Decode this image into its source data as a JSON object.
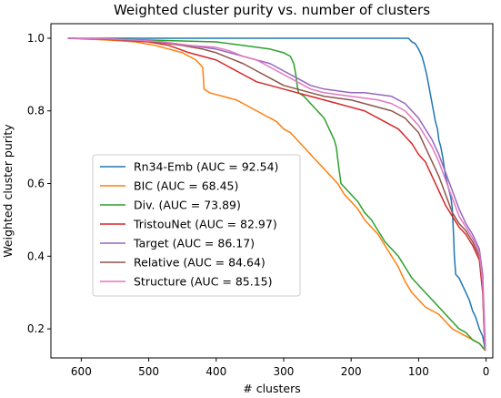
{
  "chart_data": {
    "type": "line",
    "title": "Weighted cluster purity vs. number of clusters",
    "xlabel": "# clusters",
    "ylabel": "Weighted cluster purity",
    "xlim": [
      645,
      -10
    ],
    "ylim": [
      0.12,
      1.04
    ],
    "x_reversed": true,
    "xticks": [
      600,
      500,
      400,
      300,
      200,
      100,
      0
    ],
    "yticks": [
      0.2,
      0.4,
      0.6,
      0.8,
      1.0
    ],
    "xtick_labels": [
      "600",
      "500",
      "400",
      "300",
      "200",
      "100",
      "0"
    ],
    "ytick_labels": [
      "0.2",
      "0.4",
      "0.6",
      "0.8",
      "1.0"
    ],
    "grid": false,
    "legend_position": "center-left",
    "series": [
      {
        "name": "Rn34-Emb (AUC = 92.54)",
        "color": "#1f77b4",
        "points": [
          [
            620,
            1.0
          ],
          [
            500,
            1.0
          ],
          [
            400,
            1.0
          ],
          [
            300,
            1.0
          ],
          [
            200,
            1.0
          ],
          [
            115,
            1.0
          ],
          [
            110,
            0.99
          ],
          [
            105,
            0.985
          ],
          [
            100,
            0.97
          ],
          [
            95,
            0.95
          ],
          [
            92,
            0.93
          ],
          [
            88,
            0.9
          ],
          [
            85,
            0.87
          ],
          [
            82,
            0.84
          ],
          [
            78,
            0.8
          ],
          [
            75,
            0.77
          ],
          [
            72,
            0.75
          ],
          [
            70,
            0.72
          ],
          [
            67,
            0.7
          ],
          [
            64,
            0.67
          ],
          [
            60,
            0.62
          ],
          [
            56,
            0.59
          ],
          [
            52,
            0.56
          ],
          [
            50,
            0.53
          ],
          [
            48,
            0.45
          ],
          [
            47,
            0.4
          ],
          [
            45,
            0.35
          ],
          [
            40,
            0.34
          ],
          [
            35,
            0.32
          ],
          [
            30,
            0.3
          ],
          [
            25,
            0.28
          ],
          [
            20,
            0.25
          ],
          [
            15,
            0.23
          ],
          [
            10,
            0.2
          ],
          [
            5,
            0.18
          ],
          [
            3,
            0.16
          ],
          [
            1,
            0.14
          ]
        ]
      },
      {
        "name": "BIC (AUC = 68.45)",
        "color": "#ff7f0e",
        "points": [
          [
            620,
            1.0
          ],
          [
            560,
            0.995
          ],
          [
            520,
            0.99
          ],
          [
            490,
            0.98
          ],
          [
            470,
            0.97
          ],
          [
            450,
            0.96
          ],
          [
            440,
            0.95
          ],
          [
            430,
            0.94
          ],
          [
            420,
            0.92
          ],
          [
            418,
            0.86
          ],
          [
            410,
            0.85
          ],
          [
            400,
            0.845
          ],
          [
            390,
            0.84
          ],
          [
            380,
            0.835
          ],
          [
            370,
            0.83
          ],
          [
            360,
            0.82
          ],
          [
            350,
            0.81
          ],
          [
            340,
            0.8
          ],
          [
            330,
            0.79
          ],
          [
            320,
            0.78
          ],
          [
            310,
            0.77
          ],
          [
            300,
            0.75
          ],
          [
            290,
            0.74
          ],
          [
            280,
            0.72
          ],
          [
            270,
            0.7
          ],
          [
            260,
            0.68
          ],
          [
            250,
            0.66
          ],
          [
            240,
            0.64
          ],
          [
            230,
            0.62
          ],
          [
            220,
            0.6
          ],
          [
            210,
            0.57
          ],
          [
            200,
            0.55
          ],
          [
            190,
            0.53
          ],
          [
            180,
            0.5
          ],
          [
            170,
            0.48
          ],
          [
            160,
            0.46
          ],
          [
            150,
            0.43
          ],
          [
            140,
            0.4
          ],
          [
            130,
            0.37
          ],
          [
            120,
            0.33
          ],
          [
            110,
            0.3
          ],
          [
            100,
            0.28
          ],
          [
            90,
            0.26
          ],
          [
            80,
            0.25
          ],
          [
            70,
            0.24
          ],
          [
            60,
            0.22
          ],
          [
            50,
            0.2
          ],
          [
            40,
            0.19
          ],
          [
            30,
            0.18
          ],
          [
            20,
            0.17
          ],
          [
            10,
            0.16
          ],
          [
            5,
            0.15
          ],
          [
            1,
            0.14
          ]
        ]
      },
      {
        "name": "Div. (AUC = 73.89)",
        "color": "#2ca02c",
        "points": [
          [
            620,
            1.0
          ],
          [
            500,
            0.995
          ],
          [
            400,
            0.99
          ],
          [
            380,
            0.985
          ],
          [
            360,
            0.98
          ],
          [
            340,
            0.975
          ],
          [
            320,
            0.97
          ],
          [
            300,
            0.96
          ],
          [
            290,
            0.95
          ],
          [
            285,
            0.93
          ],
          [
            282,
            0.9
          ],
          [
            280,
            0.87
          ],
          [
            278,
            0.85
          ],
          [
            270,
            0.84
          ],
          [
            260,
            0.82
          ],
          [
            250,
            0.8
          ],
          [
            240,
            0.78
          ],
          [
            235,
            0.76
          ],
          [
            230,
            0.74
          ],
          [
            225,
            0.72
          ],
          [
            222,
            0.7
          ],
          [
            220,
            0.67
          ],
          [
            218,
            0.64
          ],
          [
            215,
            0.6
          ],
          [
            210,
            0.59
          ],
          [
            200,
            0.57
          ],
          [
            190,
            0.55
          ],
          [
            180,
            0.52
          ],
          [
            170,
            0.5
          ],
          [
            160,
            0.47
          ],
          [
            150,
            0.44
          ],
          [
            140,
            0.42
          ],
          [
            130,
            0.4
          ],
          [
            120,
            0.37
          ],
          [
            110,
            0.34
          ],
          [
            100,
            0.32
          ],
          [
            90,
            0.3
          ],
          [
            80,
            0.28
          ],
          [
            70,
            0.26
          ],
          [
            60,
            0.24
          ],
          [
            50,
            0.22
          ],
          [
            40,
            0.2
          ],
          [
            30,
            0.19
          ],
          [
            20,
            0.17
          ],
          [
            10,
            0.16
          ],
          [
            1,
            0.14
          ]
        ]
      },
      {
        "name": "TristouNet (AUC = 82.97)",
        "color": "#d62728",
        "points": [
          [
            620,
            1.0
          ],
          [
            580,
            0.998
          ],
          [
            540,
            0.995
          ],
          [
            500,
            0.99
          ],
          [
            470,
            0.98
          ],
          [
            440,
            0.96
          ],
          [
            420,
            0.95
          ],
          [
            400,
            0.94
          ],
          [
            380,
            0.92
          ],
          [
            360,
            0.9
          ],
          [
            340,
            0.88
          ],
          [
            320,
            0.87
          ],
          [
            300,
            0.86
          ],
          [
            280,
            0.85
          ],
          [
            260,
            0.84
          ],
          [
            240,
            0.83
          ],
          [
            220,
            0.82
          ],
          [
            200,
            0.81
          ],
          [
            180,
            0.8
          ],
          [
            170,
            0.79
          ],
          [
            160,
            0.78
          ],
          [
            150,
            0.77
          ],
          [
            140,
            0.76
          ],
          [
            130,
            0.75
          ],
          [
            120,
            0.73
          ],
          [
            110,
            0.71
          ],
          [
            100,
            0.68
          ],
          [
            90,
            0.66
          ],
          [
            80,
            0.62
          ],
          [
            70,
            0.58
          ],
          [
            60,
            0.54
          ],
          [
            50,
            0.51
          ],
          [
            40,
            0.48
          ],
          [
            30,
            0.46
          ],
          [
            20,
            0.43
          ],
          [
            10,
            0.39
          ],
          [
            5,
            0.3
          ],
          [
            3,
            0.2
          ],
          [
            1,
            0.14
          ]
        ]
      },
      {
        "name": "Target (AUC = 86.17)",
        "color": "#9467bd",
        "points": [
          [
            620,
            1.0
          ],
          [
            560,
            0.998
          ],
          [
            520,
            0.995
          ],
          [
            480,
            0.99
          ],
          [
            440,
            0.98
          ],
          [
            400,
            0.97
          ],
          [
            380,
            0.96
          ],
          [
            360,
            0.95
          ],
          [
            340,
            0.94
          ],
          [
            320,
            0.93
          ],
          [
            300,
            0.91
          ],
          [
            280,
            0.89
          ],
          [
            260,
            0.87
          ],
          [
            240,
            0.86
          ],
          [
            220,
            0.855
          ],
          [
            200,
            0.85
          ],
          [
            180,
            0.85
          ],
          [
            160,
            0.845
          ],
          [
            140,
            0.84
          ],
          [
            120,
            0.82
          ],
          [
            110,
            0.8
          ],
          [
            100,
            0.78
          ],
          [
            90,
            0.75
          ],
          [
            80,
            0.72
          ],
          [
            70,
            0.68
          ],
          [
            60,
            0.63
          ],
          [
            50,
            0.58
          ],
          [
            40,
            0.53
          ],
          [
            30,
            0.49
          ],
          [
            20,
            0.46
          ],
          [
            10,
            0.42
          ],
          [
            5,
            0.35
          ],
          [
            3,
            0.25
          ],
          [
            1,
            0.15
          ]
        ]
      },
      {
        "name": "Relative (AUC = 84.64)",
        "color": "#8c564b",
        "points": [
          [
            620,
            1.0
          ],
          [
            570,
            0.998
          ],
          [
            530,
            0.995
          ],
          [
            490,
            0.99
          ],
          [
            450,
            0.98
          ],
          [
            420,
            0.97
          ],
          [
            400,
            0.96
          ],
          [
            380,
            0.945
          ],
          [
            360,
            0.93
          ],
          [
            340,
            0.91
          ],
          [
            320,
            0.89
          ],
          [
            300,
            0.87
          ],
          [
            280,
            0.86
          ],
          [
            260,
            0.85
          ],
          [
            240,
            0.84
          ],
          [
            220,
            0.835
          ],
          [
            200,
            0.83
          ],
          [
            180,
            0.82
          ],
          [
            160,
            0.81
          ],
          [
            140,
            0.8
          ],
          [
            120,
            0.78
          ],
          [
            110,
            0.76
          ],
          [
            100,
            0.74
          ],
          [
            90,
            0.7
          ],
          [
            80,
            0.66
          ],
          [
            70,
            0.62
          ],
          [
            60,
            0.57
          ],
          [
            50,
            0.52
          ],
          [
            40,
            0.49
          ],
          [
            30,
            0.47
          ],
          [
            20,
            0.44
          ],
          [
            10,
            0.4
          ],
          [
            5,
            0.32
          ],
          [
            3,
            0.2
          ],
          [
            1,
            0.14
          ]
        ]
      },
      {
        "name": "Structure (AUC = 85.15)",
        "color": "#e377c2",
        "points": [
          [
            620,
            1.0
          ],
          [
            560,
            0.998
          ],
          [
            520,
            0.995
          ],
          [
            480,
            0.99
          ],
          [
            440,
            0.98
          ],
          [
            400,
            0.975
          ],
          [
            380,
            0.965
          ],
          [
            360,
            0.95
          ],
          [
            340,
            0.94
          ],
          [
            320,
            0.92
          ],
          [
            300,
            0.9
          ],
          [
            280,
            0.88
          ],
          [
            260,
            0.86
          ],
          [
            240,
            0.85
          ],
          [
            220,
            0.845
          ],
          [
            200,
            0.84
          ],
          [
            180,
            0.835
          ],
          [
            160,
            0.83
          ],
          [
            140,
            0.82
          ],
          [
            120,
            0.8
          ],
          [
            110,
            0.78
          ],
          [
            100,
            0.76
          ],
          [
            90,
            0.73
          ],
          [
            80,
            0.7
          ],
          [
            70,
            0.66
          ],
          [
            60,
            0.61
          ],
          [
            50,
            0.56
          ],
          [
            40,
            0.51
          ],
          [
            30,
            0.48
          ],
          [
            20,
            0.45
          ],
          [
            10,
            0.41
          ],
          [
            5,
            0.33
          ],
          [
            3,
            0.22
          ],
          [
            1,
            0.14
          ]
        ]
      }
    ]
  }
}
